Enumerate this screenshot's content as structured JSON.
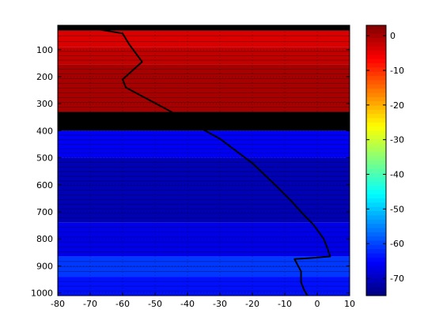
{
  "chart_data": {
    "type": "filled-contour",
    "title": "",
    "xlabel": "",
    "ylabel": "",
    "xlim": [
      -80,
      10
    ],
    "ylim": [
      10,
      1010
    ],
    "y_reversed": true,
    "x_ticks": [
      -80,
      -70,
      -60,
      -50,
      -40,
      -30,
      -20,
      -10,
      0,
      10
    ],
    "y_ticks": [
      100,
      200,
      300,
      400,
      500,
      600,
      700,
      800,
      900,
      1000
    ],
    "grid": true,
    "colormap": "jet",
    "colorbar": {
      "position": "right",
      "range": [
        -75,
        3
      ],
      "ticks": [
        0,
        -10,
        -20,
        -30,
        -40,
        -50,
        -60,
        -70
      ]
    },
    "bands": [
      {
        "y0": 10,
        "y1": 30,
        "value": "nan"
      },
      {
        "y0": 30,
        "y1": 90,
        "value": -4
      },
      {
        "y0": 90,
        "y1": 155,
        "value": -2
      },
      {
        "y0": 155,
        "y1": 330,
        "value": 0
      },
      {
        "y0": 330,
        "y1": 400,
        "value": "nan"
      },
      {
        "y0": 400,
        "y1": 500,
        "value": -66
      },
      {
        "y0": 500,
        "y1": 740,
        "value": -71
      },
      {
        "y0": 740,
        "y1": 865,
        "value": -67
      },
      {
        "y0": 865,
        "y1": 940,
        "value": -61
      },
      {
        "y0": 940,
        "y1": 1010,
        "value": -64
      }
    ],
    "series": [
      {
        "line_color": "#000000",
        "x": [
          -70,
          -60,
          -58,
          -54,
          -60,
          -59,
          -45,
          -30,
          -20,
          -13,
          -8,
          -5,
          -1,
          2,
          3,
          4,
          -1,
          -7,
          -5,
          -5,
          -4,
          -3
        ],
        "y": [
          20,
          40,
          80,
          145,
          210,
          240,
          330,
          430,
          520,
          600,
          660,
          700,
          750,
          800,
          830,
          865,
          870,
          875,
          920,
          960,
          990,
          1010
        ]
      }
    ]
  }
}
